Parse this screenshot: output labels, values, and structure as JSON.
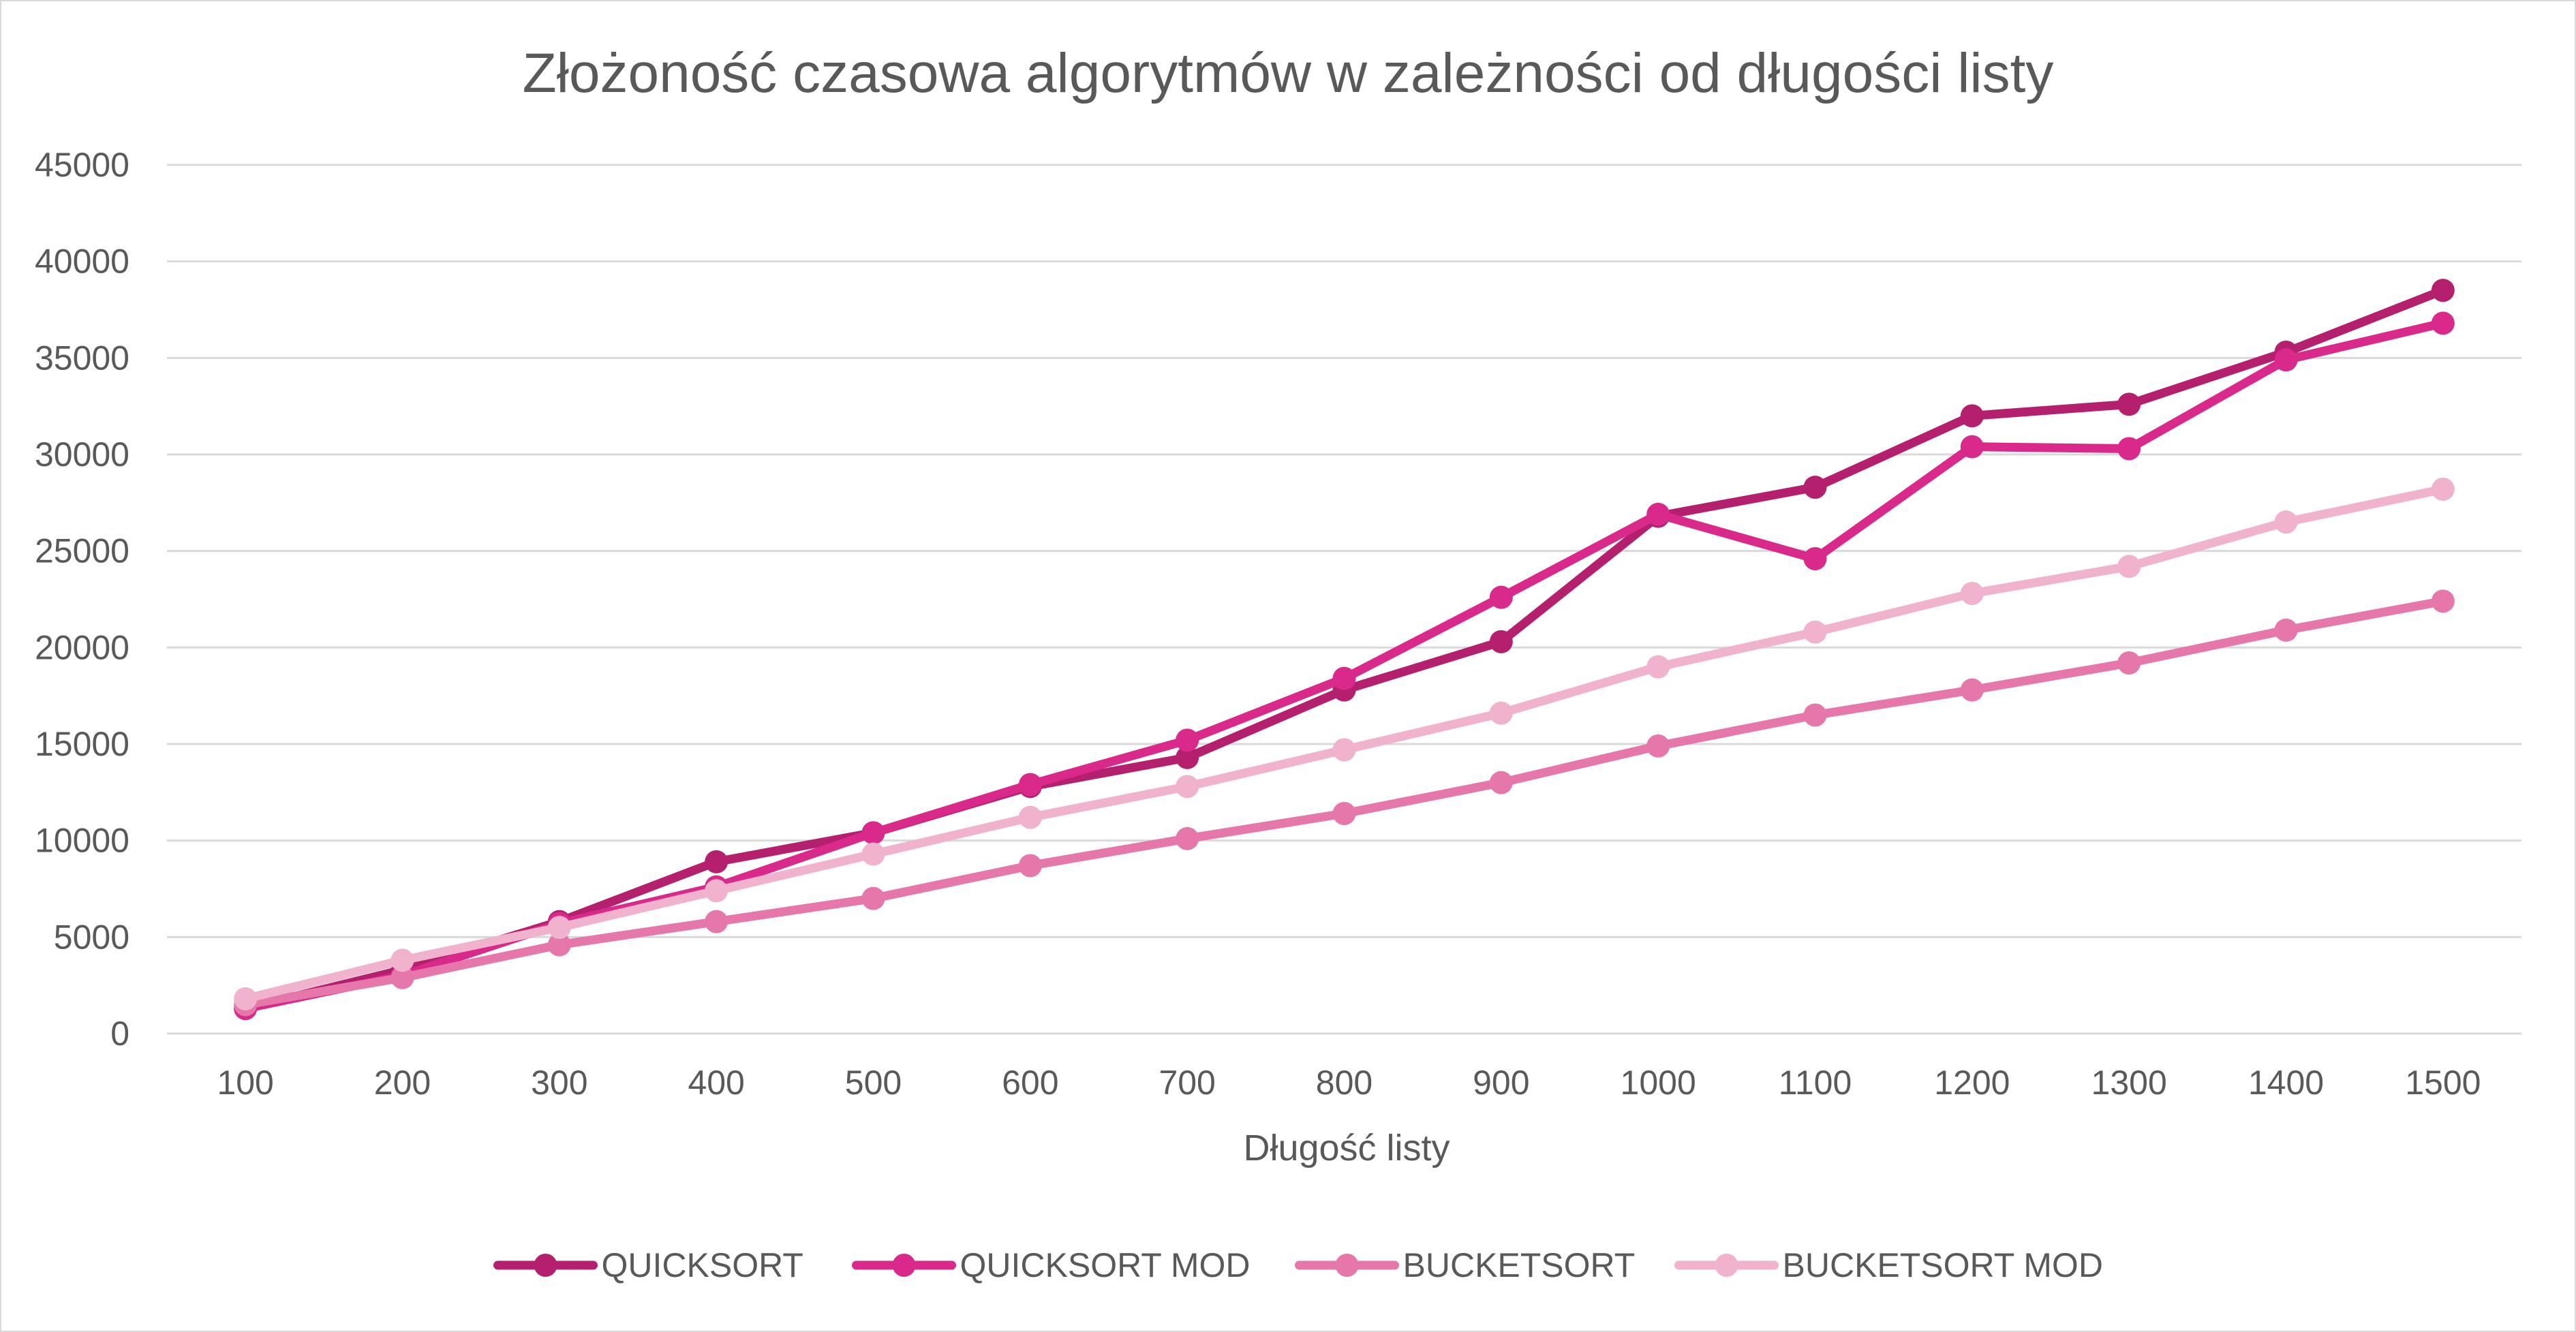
{
  "chart_data": {
    "type": "line",
    "title": "Złożoność czasowa algorytmów w zależności od długości listy",
    "xlabel": "Długość listy",
    "ylabel": "",
    "categories": [
      "100",
      "200",
      "300",
      "400",
      "500",
      "600",
      "700",
      "800",
      "900",
      "1000",
      "1100",
      "1200",
      "1300",
      "1400",
      "1500"
    ],
    "ylim": [
      0,
      45000
    ],
    "yticks": [
      "0",
      "5000",
      "10000",
      "15000",
      "20000",
      "25000",
      "30000",
      "35000",
      "40000",
      "45000"
    ],
    "grid": true,
    "legend_position": "bottom",
    "series": [
      {
        "name": "QUICKSORT",
        "color": "#b5206e",
        "values": [
          1300,
          3300,
          5800,
          8900,
          10400,
          12800,
          14300,
          17800,
          20300,
          26800,
          28300,
          32000,
          32600,
          35300,
          38500
        ]
      },
      {
        "name": "QUICKSORT MOD",
        "color": "#d9298b",
        "values": [
          1300,
          3000,
          5700,
          7600,
          10400,
          12900,
          15200,
          18400,
          22600,
          26900,
          24600,
          30400,
          30300,
          34900,
          36800
        ]
      },
      {
        "name": "BUCKETSORT",
        "color": "#e577aa",
        "values": [
          1500,
          2900,
          4600,
          5800,
          7000,
          8700,
          10100,
          11400,
          13000,
          14900,
          16500,
          17800,
          19200,
          20900,
          22400
        ]
      },
      {
        "name": "BUCKETSORT MOD",
        "color": "#f0b2cd",
        "values": [
          1800,
          3800,
          5500,
          7400,
          9300,
          11200,
          12800,
          14700,
          16600,
          19000,
          20800,
          22800,
          24200,
          26500,
          28200
        ]
      }
    ]
  }
}
